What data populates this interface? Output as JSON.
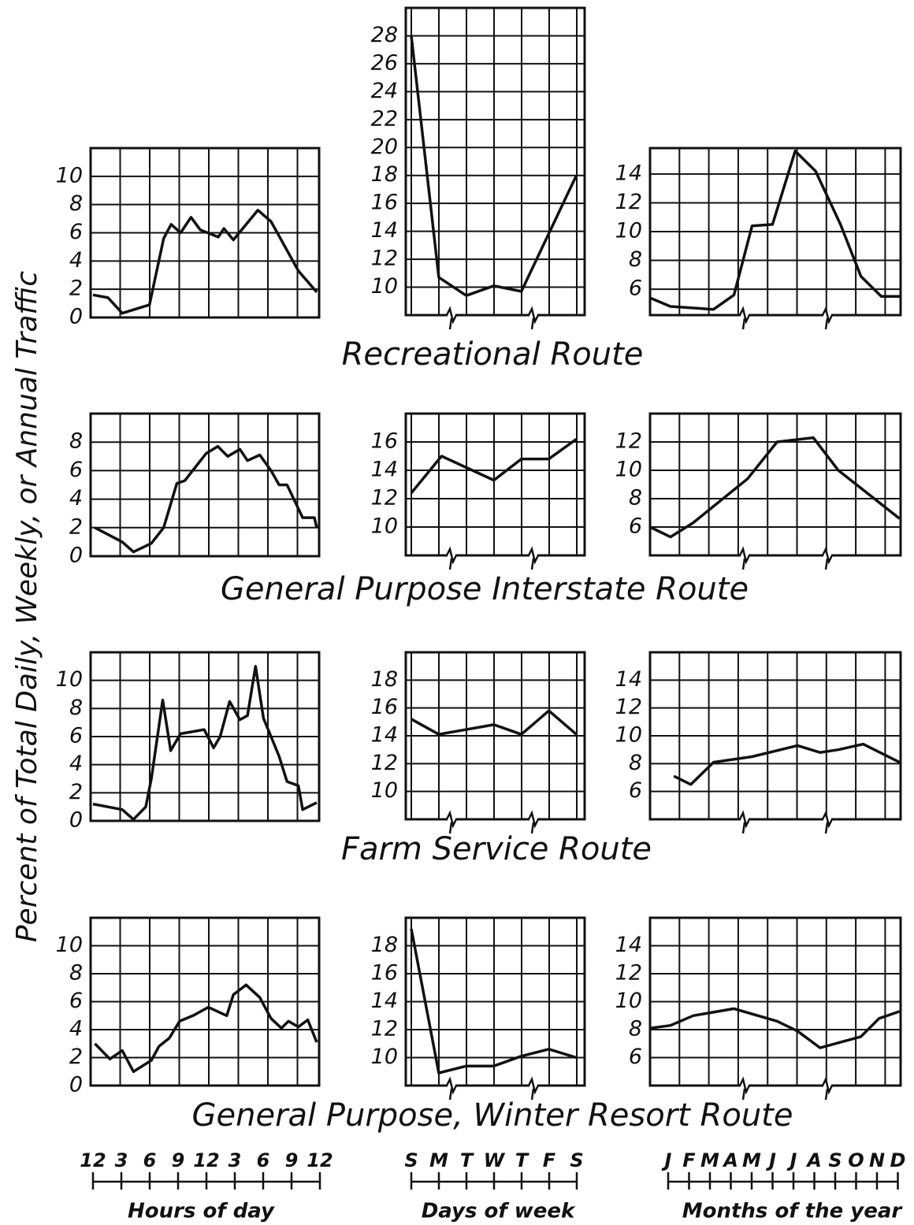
{
  "y_axis_label": "Percent of Total Daily, Weekly, or Annual Traffic",
  "row_titles": [
    "Recreational Route",
    "General Purpose Interstate Route",
    "Farm Service Route",
    "General Purpose, Winter Resort Route"
  ],
  "scales": [
    {
      "title": "Hours of day",
      "labels": [
        "12",
        "3",
        "6",
        "9",
        "12",
        "3",
        "6",
        "9",
        "12"
      ]
    },
    {
      "title": "Days of week",
      "labels": [
        "S",
        "M",
        "T",
        "W",
        "T",
        "F",
        "S"
      ]
    },
    {
      "title": "Months of the year",
      "labels": [
        "J",
        "F",
        "M",
        "A",
        "M",
        "J",
        "J",
        "A",
        "S",
        "O",
        "N",
        "D"
      ]
    }
  ],
  "chart_data": [
    {
      "type": "line",
      "color": "#111111",
      "grid": true,
      "xlim": [
        -0.25,
        24
      ],
      "ylim": [
        0,
        12
      ],
      "yticks": [
        0,
        2,
        4,
        6,
        8,
        10
      ],
      "x": [
        0,
        1.6,
        3.1,
        6,
        7.5,
        8.3,
        9.3,
        10.4,
        11.4,
        13.3,
        13.9,
        14.9,
        17.5,
        18.9,
        21.8,
        23.75
      ],
      "values": [
        1.6,
        1.4,
        0.3,
        0.9,
        5.6,
        6.6,
        6.0,
        7.1,
        6.2,
        5.7,
        6.3,
        5.5,
        7.6,
        6.8,
        3.3,
        1.8
      ]
    },
    {
      "type": "line",
      "color": "#111111",
      "grid": true,
      "xlim": [
        -0.2,
        6.3
      ],
      "ylim": [
        8,
        30
      ],
      "yticks": [
        10,
        12,
        14,
        16,
        18,
        20,
        22,
        24,
        26,
        28
      ],
      "x": [
        0,
        1,
        2,
        3,
        4,
        6
      ],
      "values": [
        28,
        10.7,
        9.4,
        10.1,
        9.7,
        18
      ]
    },
    {
      "type": "line",
      "color": "#111111",
      "grid": true,
      "xlim": [
        0,
        11.05
      ],
      "ylim": [
        4.2,
        15.8
      ],
      "yticks": [
        6,
        8,
        10,
        12,
        14
      ],
      "x": [
        0,
        0.9,
        2.8,
        3.7,
        4.5,
        5.4,
        6.4,
        7.3,
        8.4,
        9.3,
        10.2,
        11
      ],
      "values": [
        5.4,
        4.8,
        4.6,
        5.6,
        10.4,
        10.5,
        15.6,
        14.2,
        10.5,
        6.9,
        5.5,
        5.5
      ]
    },
    {
      "type": "line",
      "color": "#111111",
      "grid": true,
      "xlim": [
        -0.25,
        24
      ],
      "ylim": [
        0,
        10
      ],
      "yticks": [
        0,
        2,
        4,
        6,
        8
      ],
      "x": [
        0.2,
        3.1,
        4.3,
        6.2,
        7.5,
        8.9,
        9.75,
        12,
        13.25,
        14.3,
        15.6,
        16.4,
        17.7,
        18.9,
        19.75,
        20.6,
        22.25,
        23.5,
        23.75
      ],
      "values": [
        2.0,
        1.0,
        0.3,
        0.9,
        2.0,
        5.1,
        5.3,
        7.2,
        7.7,
        7.0,
        7.5,
        6.7,
        7.1,
        6.0,
        5.0,
        5.0,
        2.7,
        2.7,
        2.0
      ]
    },
    {
      "type": "line",
      "color": "#111111",
      "grid": true,
      "xlim": [
        -0.2,
        6.3
      ],
      "ylim": [
        8,
        18
      ],
      "yticks": [
        10,
        12,
        14,
        16
      ],
      "x": [
        0,
        1.1,
        3,
        4,
        5,
        6
      ],
      "values": [
        12.4,
        15,
        13.3,
        14.8,
        14.8,
        16.2
      ]
    },
    {
      "type": "line",
      "color": "#111111",
      "grid": true,
      "xlim": [
        0,
        11.05
      ],
      "ylim": [
        4,
        14
      ],
      "yticks": [
        6,
        8,
        10,
        12
      ],
      "x": [
        0,
        0.9,
        1.9,
        4.3,
        5.6,
        7.2,
        8.3,
        11
      ],
      "values": [
        6,
        5.3,
        6.3,
        9.4,
        12,
        12.3,
        10,
        6.6
      ]
    },
    {
      "type": "line",
      "color": "#111111",
      "grid": true,
      "xlim": [
        -0.25,
        24
      ],
      "ylim": [
        0,
        12
      ],
      "yticks": [
        0,
        2,
        4,
        6,
        8,
        10
      ],
      "x": [
        0,
        3.1,
        4.3,
        5.6,
        6.2,
        7.4,
        8.25,
        9.3,
        11,
        11.8,
        12.8,
        13.5,
        14.5,
        15.6,
        16.4,
        17.25,
        18.1,
        18.9,
        19.75,
        20.6,
        21.8,
        22.25,
        23.75
      ],
      "values": [
        1.2,
        0.8,
        0.1,
        1.0,
        3.0,
        8.6,
        5.0,
        6.2,
        6.4,
        6.5,
        5.2,
        6.0,
        8.5,
        7.2,
        7.5,
        11.0,
        7.3,
        6.0,
        4.6,
        2.8,
        2.5,
        0.8,
        1.3
      ]
    },
    {
      "type": "line",
      "color": "#111111",
      "grid": true,
      "xlim": [
        -0.2,
        6.3
      ],
      "ylim": [
        8,
        20
      ],
      "yticks": [
        10,
        12,
        14,
        16,
        18
      ],
      "x": [
        0,
        1,
        3,
        4,
        5,
        6
      ],
      "values": [
        15.2,
        14.1,
        14.8,
        14.1,
        15.8,
        14.1
      ]
    },
    {
      "type": "line",
      "color": "#111111",
      "grid": true,
      "xlim": [
        0,
        11.05
      ],
      "ylim": [
        4,
        16
      ],
      "yticks": [
        6,
        8,
        10,
        12,
        14
      ],
      "x": [
        1.05,
        1.8,
        2.8,
        4.5,
        6.5,
        7.5,
        8.3,
        9.4,
        11
      ],
      "values": [
        7.1,
        6.5,
        8.1,
        8.5,
        9.3,
        8.8,
        9.0,
        9.4,
        8.1
      ]
    },
    {
      "type": "line",
      "color": "#111111",
      "grid": true,
      "xlim": [
        -0.25,
        24
      ],
      "ylim": [
        0,
        12
      ],
      "yticks": [
        0,
        2,
        4,
        6,
        8,
        10
      ],
      "x": [
        0.2,
        1.8,
        3.1,
        4.3,
        6.2,
        7,
        8.1,
        9.2,
        10.6,
        12.25,
        14.2,
        14.9,
        16.25,
        17.7,
        18.9,
        20,
        20.75,
        21.8,
        22.8,
        23.75
      ],
      "values": [
        3.0,
        1.9,
        2.5,
        1.0,
        1.8,
        2.8,
        3.4,
        4.6,
        5.0,
        5.6,
        5.0,
        6.5,
        7.2,
        6.3,
        4.8,
        4.1,
        4.6,
        4.2,
        4.7,
        3.1
      ]
    },
    {
      "type": "line",
      "color": "#111111",
      "grid": true,
      "xlim": [
        -0.2,
        6.3
      ],
      "ylim": [
        8,
        20
      ],
      "yticks": [
        10,
        12,
        14,
        16,
        18
      ],
      "x": [
        0,
        1,
        2,
        3,
        4,
        5,
        6
      ],
      "values": [
        19.2,
        8.9,
        9.4,
        9.4,
        10.1,
        10.6,
        10.0
      ]
    },
    {
      "type": "line",
      "color": "#111111",
      "grid": true,
      "xlim": [
        0,
        11.05
      ],
      "ylim": [
        4,
        16
      ],
      "yticks": [
        6,
        8,
        10,
        12,
        14
      ],
      "x": [
        0,
        0.9,
        1.9,
        3.7,
        5.6,
        6.5,
        7.5,
        9.3,
        10.1,
        11
      ],
      "values": [
        8.1,
        8.3,
        9.0,
        9.5,
        8.6,
        7.9,
        6.7,
        7.5,
        8.8,
        9.3
      ]
    }
  ]
}
